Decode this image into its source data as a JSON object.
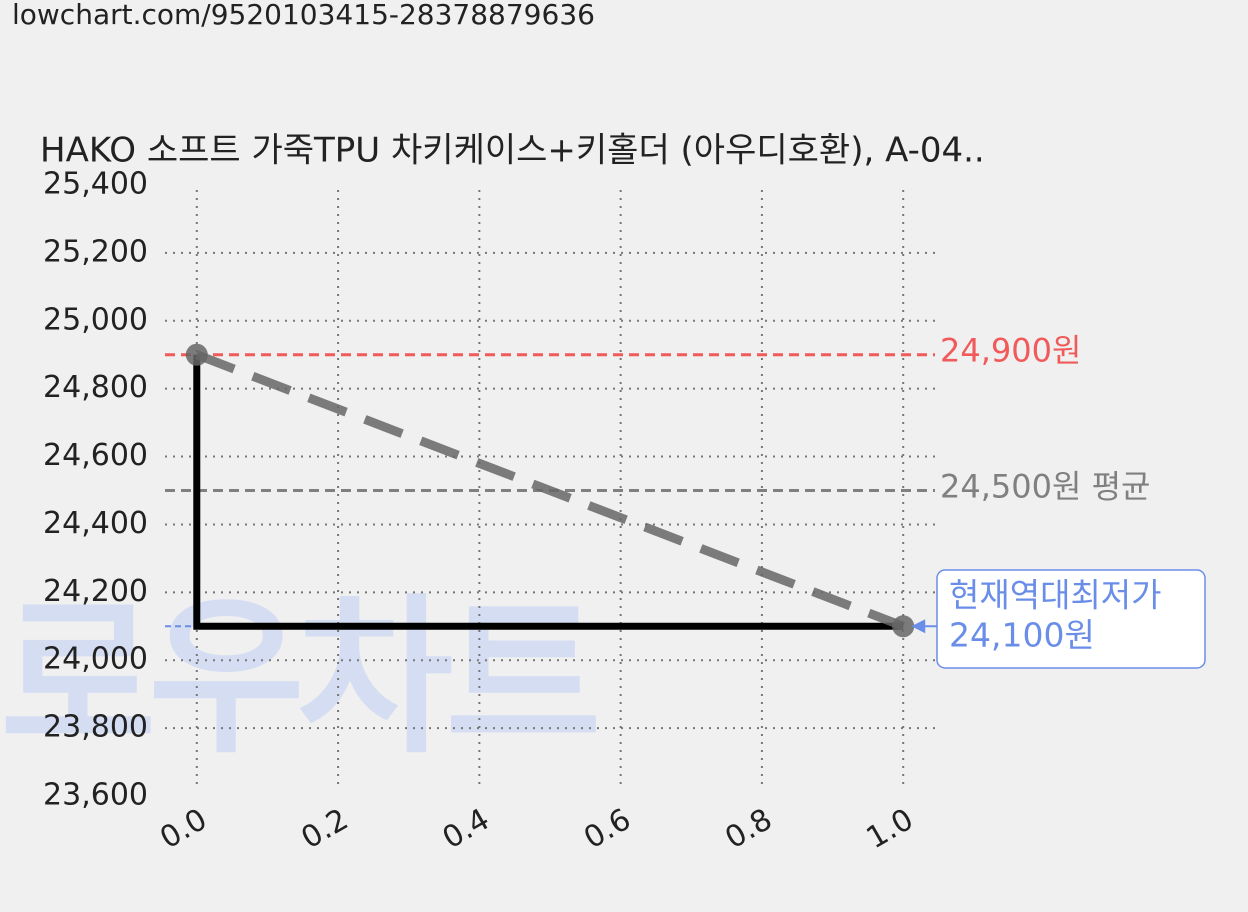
{
  "url": "lowchart.com/9520103415-28378879636",
  "chart_data": {
    "type": "line",
    "title": "HAKO 소프트 가죽TPU 차키케이스+키홀더 (아우디호환), A-04..",
    "watermark": "로우차트",
    "x": [
      0,
      1
    ],
    "series": [
      {
        "color": "#000000",
        "values": [
          24900,
          24100
        ],
        "step": "pre",
        "dashed": false,
        "markers": false
      },
      {
        "color": "#666666",
        "values": [
          24900,
          24100
        ],
        "step": "none",
        "dashed": true,
        "markers": true
      }
    ],
    "hlines": [
      {
        "value": 24900,
        "label": "24,900원",
        "color": "#f05a5a"
      },
      {
        "value": 24500,
        "label": "24,500원 평균",
        "color": "#808080"
      },
      {
        "value": 24100,
        "color": "#6a8ee8"
      }
    ],
    "annotation": {
      "x": 1,
      "y": 24100,
      "lines": [
        "현재역대최저가",
        "24,100원"
      ],
      "color": "#6a8ee8"
    },
    "xlim": [
      -0.045,
      1.045
    ],
    "ylim": [
      23600,
      25400
    ],
    "xticks": [
      {
        "value": 0,
        "label": "0.0"
      },
      0.2,
      0.4,
      0.6,
      0.8,
      {
        "value": 1,
        "label": "1.0"
      }
    ],
    "yticks": [
      {
        "value": 23600,
        "label": "23,600"
      },
      {
        "value": 23800,
        "label": "23,800"
      },
      {
        "value": 24000,
        "label": "24,000"
      },
      {
        "value": 24200,
        "label": "24,200"
      },
      {
        "value": 24400,
        "label": "24,400"
      },
      {
        "value": 24600,
        "label": "24,600"
      },
      {
        "value": 24800,
        "label": "24,800"
      },
      {
        "value": 25000,
        "label": "25,000"
      },
      {
        "value": 25200,
        "label": "25,200"
      },
      {
        "value": 25400,
        "label": "25,400"
      }
    ],
    "grid": true
  }
}
